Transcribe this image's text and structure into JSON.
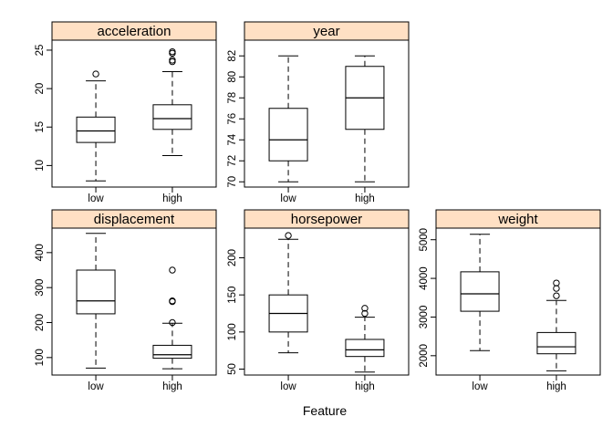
{
  "colors": {
    "strip_fill": "#ffe0c4",
    "line": "#000000",
    "background": "#ffffff"
  },
  "chart_data": {
    "type": "box",
    "xlabel": "Feature",
    "ylabel": "",
    "title": "",
    "categories": [
      "low",
      "high"
    ],
    "panels": [
      {
        "name": "acceleration",
        "ylim": [
          7.2,
          26.3
        ],
        "yticks": [
          10,
          15,
          20,
          25
        ],
        "boxes": [
          {
            "category": "low",
            "whisker_low": 8.0,
            "q1": 13.0,
            "median": 14.5,
            "q3": 16.3,
            "whisker_high": 21.0,
            "outliers": [
              21.9
            ]
          },
          {
            "category": "high",
            "whisker_low": 11.3,
            "q1": 14.7,
            "median": 16.1,
            "q3": 17.9,
            "whisker_high": 22.2,
            "outliers": [
              23.5,
              23.7,
              24.6,
              24.8
            ]
          }
        ]
      },
      {
        "name": "year",
        "ylim": [
          69.5,
          83.5
        ],
        "yticks": [
          70,
          72,
          74,
          76,
          78,
          80,
          82
        ],
        "boxes": [
          {
            "category": "low",
            "whisker_low": 70,
            "q1": 72,
            "median": 74,
            "q3": 77,
            "whisker_high": 82,
            "outliers": []
          },
          {
            "category": "high",
            "whisker_low": 70,
            "q1": 75,
            "median": 78,
            "q3": 81,
            "whisker_high": 82,
            "outliers": []
          }
        ]
      },
      {
        "name": "displacement",
        "ylim": [
          50,
          470
        ],
        "yticks": [
          100,
          200,
          300,
          400
        ],
        "boxes": [
          {
            "category": "low",
            "whisker_low": 70,
            "q1": 225,
            "median": 262,
            "q3": 350,
            "whisker_high": 455,
            "outliers": []
          },
          {
            "category": "high",
            "whisker_low": 68,
            "q1": 98,
            "median": 108,
            "q3": 135,
            "whisker_high": 198,
            "outliers": [
              200,
              260,
              262,
              350
            ]
          }
        ]
      },
      {
        "name": "horsepower",
        "ylim": [
          42,
          240
        ],
        "yticks": [
          50,
          100,
          150,
          200
        ],
        "boxes": [
          {
            "category": "low",
            "whisker_low": 72,
            "q1": 100,
            "median": 125,
            "q3": 150,
            "whisker_high": 225,
            "outliers": [
              230
            ]
          },
          {
            "category": "high",
            "whisker_low": 46,
            "q1": 67,
            "median": 76,
            "q3": 90,
            "whisker_high": 120,
            "outliers": [
              125,
              132
            ]
          }
        ]
      },
      {
        "name": "weight",
        "ylim": [
          1500,
          5300
        ],
        "yticks": [
          2000,
          3000,
          4000,
          5000
        ],
        "boxes": [
          {
            "category": "low",
            "whisker_low": 2130,
            "q1": 3150,
            "median": 3600,
            "q3": 4170,
            "whisker_high": 5140,
            "outliers": []
          },
          {
            "category": "high",
            "whisker_low": 1610,
            "q1": 2050,
            "median": 2230,
            "q3": 2600,
            "whisker_high": 3430,
            "outliers": [
              3550,
              3740,
              3880
            ]
          }
        ]
      }
    ]
  }
}
